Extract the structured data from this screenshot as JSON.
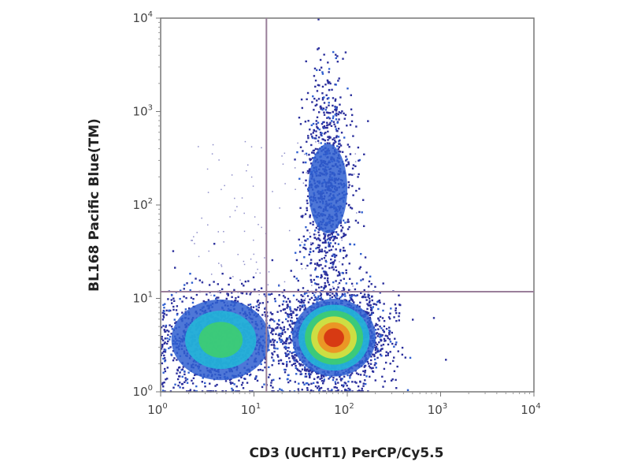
{
  "chart_data": {
    "type": "scatter",
    "subtype": "flow-cytometry-density-plot",
    "xlabel": "CD3 (UCHT1) PerCP/Cy5.5",
    "ylabel": "BL168 Pacific Blue(TM)",
    "x_scale": "log",
    "y_scale": "log",
    "xlim": [
      1,
      10000
    ],
    "ylim": [
      1,
      10000
    ],
    "x_ticks": [
      {
        "base": "10",
        "exp": "0"
      },
      {
        "base": "10",
        "exp": "1"
      },
      {
        "base": "10",
        "exp": "2"
      },
      {
        "base": "10",
        "exp": "3"
      },
      {
        "base": "10",
        "exp": "4"
      }
    ],
    "y_ticks": [
      {
        "base": "10",
        "exp": "0"
      },
      {
        "base": "10",
        "exp": "1"
      },
      {
        "base": "10",
        "exp": "2"
      },
      {
        "base": "10",
        "exp": "3"
      },
      {
        "base": "10",
        "exp": "4"
      }
    ],
    "quadrant_gate": {
      "x": 13.6,
      "y": 11.8,
      "color": "#9a7f9a"
    },
    "populations": [
      {
        "name_hint": "CD3-negative",
        "center": [
          4.4,
          3.6
        ],
        "spread_log": [
          0.33,
          0.27
        ],
        "peak_density": 0.45
      },
      {
        "name_hint": "CD3-positive",
        "center": [
          72,
          3.8
        ],
        "spread_log": [
          0.28,
          0.26
        ],
        "peak_density": 1.0
      },
      {
        "name_hint": "CD3-positive BL168-high tail",
        "center": [
          62,
          150
        ],
        "spread_log": [
          0.13,
          0.6
        ],
        "peak_density": 0.2
      }
    ],
    "density_colors": [
      "#2b2f9c",
      "#2f5fd0",
      "#22b8d8",
      "#3fcf6a",
      "#e8e23a",
      "#f08a20",
      "#d42a10"
    ],
    "grid": false
  }
}
